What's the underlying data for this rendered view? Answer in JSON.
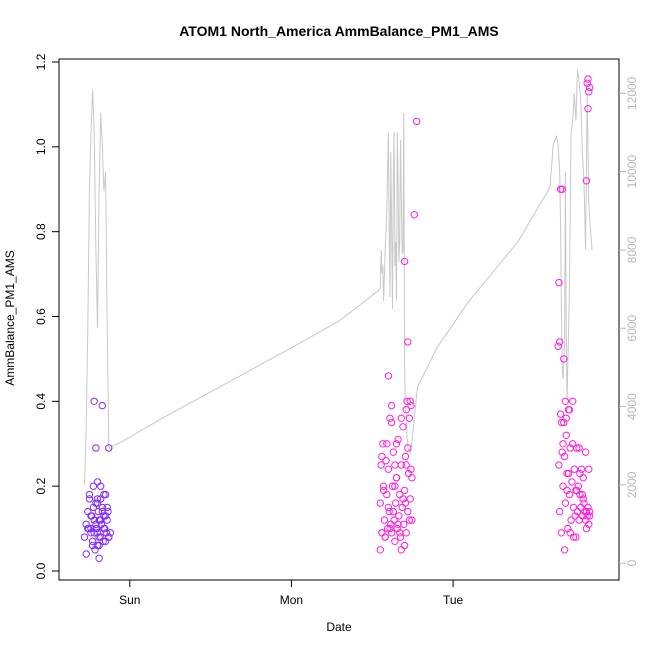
{
  "chart_data": {
    "type": "scatter",
    "title": "ATOM1 North_America AmmBalance_PM1_AMS",
    "xlabel": "Date",
    "ylabel": "AmmBalance_PM1_AMS",
    "ylabel_right": "",
    "x_ticks": [
      "Sun",
      "Mon",
      "Tue"
    ],
    "x_tick_values": [
      1,
      2,
      3
    ],
    "xlim": [
      0.63,
      3.94
    ],
    "ylim": [
      0,
      1.2
    ],
    "y_ticks": [
      0.0,
      0.2,
      0.4,
      0.6,
      0.8,
      1.0,
      1.2
    ],
    "y2lim": [
      -200,
      12800
    ],
    "y2_ticks": [
      0,
      2000,
      4000,
      6000,
      8000,
      10000,
      12000
    ],
    "grid": false,
    "colors": {
      "series_start": "#7b2cff",
      "series_end": "#ff20e0",
      "altitude_line": "#c8c8c8",
      "axis": "#000000",
      "right_axis": "#b8b8b8"
    },
    "series": [
      {
        "role": "points",
        "x": [
          0.72,
          0.73,
          0.74,
          0.745,
          0.75,
          0.76,
          0.765,
          0.77,
          0.775,
          0.78,
          0.785,
          0.79,
          0.795,
          0.8,
          0.8,
          0.805,
          0.81,
          0.815,
          0.82,
          0.82,
          0.825,
          0.83,
          0.835,
          0.84,
          0.845,
          0.85,
          0.855,
          0.86,
          0.865,
          0.87,
          0.73,
          0.74,
          0.75,
          0.76,
          0.77,
          0.78,
          0.79,
          0.8,
          0.81,
          0.82,
          0.83,
          0.84,
          0.85,
          0.86,
          0.78,
          0.79,
          0.8,
          0.81,
          0.83,
          0.87,
          0.775,
          0.8,
          0.87,
          0.81,
          0.76,
          0.82,
          0.84,
          0.85,
          0.79,
          0.88,
          2.55,
          2.555,
          2.56,
          2.565,
          2.57,
          2.575,
          2.58,
          2.585,
          2.59,
          2.595,
          2.6,
          2.605,
          2.61,
          2.615,
          2.62,
          2.625,
          2.63,
          2.635,
          2.64,
          2.645,
          2.65,
          2.655,
          2.66,
          2.665,
          2.67,
          2.675,
          2.68,
          2.685,
          2.69,
          2.695,
          2.7,
          2.705,
          2.71,
          2.715,
          2.72,
          2.725,
          2.73,
          2.735,
          2.74,
          2.745,
          2.55,
          2.57,
          2.59,
          2.61,
          2.63,
          2.65,
          2.67,
          2.69,
          2.71,
          2.73,
          2.56,
          2.58,
          2.6,
          2.62,
          2.64,
          2.66,
          2.68,
          2.7,
          2.72,
          2.74,
          2.6,
          2.62,
          2.65,
          2.68,
          2.7,
          2.72,
          2.735,
          2.705,
          2.71,
          2.745,
          2.775,
          2.76,
          2.56,
          2.64,
          3.65,
          3.655,
          3.66,
          3.665,
          3.67,
          3.675,
          3.68,
          3.685,
          3.69,
          3.695,
          3.7,
          3.705,
          3.71,
          3.715,
          3.72,
          3.725,
          3.73,
          3.735,
          3.74,
          3.745,
          3.75,
          3.755,
          3.76,
          3.765,
          3.77,
          3.775,
          3.78,
          3.785,
          3.79,
          3.795,
          3.8,
          3.805,
          3.81,
          3.815,
          3.82,
          3.825,
          3.83,
          3.835,
          3.84,
          3.845,
          3.655,
          3.665,
          3.675,
          3.685,
          3.695,
          3.705,
          3.715,
          3.725,
          3.745,
          3.765,
          3.785,
          3.805,
          3.825,
          3.845,
          3.66,
          3.67,
          3.68,
          3.69,
          3.7,
          3.72,
          3.74,
          3.76,
          3.78,
          3.8,
          3.82,
          3.84,
          3.835,
          3.83,
          3.845,
          3.84,
          3.825,
          3.835
        ],
        "y": [
          0.08,
          0.11,
          0.14,
          0.1,
          0.18,
          0.09,
          0.13,
          0.07,
          0.15,
          0.12,
          0.05,
          0.16,
          0.1,
          0.09,
          0.17,
          0.14,
          0.06,
          0.12,
          0.08,
          0.2,
          0.11,
          0.15,
          0.07,
          0.13,
          0.1,
          0.18,
          0.09,
          0.12,
          0.14,
          0.08,
          0.04,
          0.1,
          0.17,
          0.13,
          0.06,
          0.09,
          0.11,
          0.16,
          0.08,
          0.12,
          0.14,
          0.1,
          0.07,
          0.15,
          0.4,
          0.29,
          0.21,
          0.12,
          0.39,
          0.08,
          0.2,
          0.06,
          0.29,
          0.03,
          0.1,
          0.17,
          0.18,
          0.13,
          0.1,
          0.09,
          0.16,
          0.25,
          0.09,
          0.3,
          0.2,
          0.12,
          0.08,
          0.26,
          0.18,
          0.1,
          0.24,
          0.14,
          0.36,
          0.11,
          0.09,
          0.2,
          0.28,
          0.12,
          0.07,
          0.16,
          0.22,
          0.1,
          0.31,
          0.13,
          0.18,
          0.08,
          0.25,
          0.15,
          0.34,
          0.11,
          0.19,
          0.27,
          0.09,
          0.4,
          0.14,
          0.23,
          0.36,
          0.17,
          0.39,
          0.12,
          0.05,
          0.19,
          0.3,
          0.1,
          0.14,
          0.22,
          0.09,
          0.17,
          0.25,
          0.12,
          0.27,
          0.08,
          0.15,
          0.35,
          0.2,
          0.11,
          0.05,
          0.06,
          0.29,
          0.24,
          0.46,
          0.39,
          0.3,
          0.36,
          0.73,
          0.54,
          0.4,
          0.16,
          0.38,
          0.22,
          1.06,
          0.84,
          0.09,
          0.25,
          0.53,
          0.25,
          0.14,
          0.37,
          0.09,
          0.28,
          0.2,
          0.35,
          0.05,
          0.16,
          0.32,
          0.23,
          0.1,
          0.38,
          0.18,
          0.29,
          0.12,
          0.21,
          0.3,
          0.15,
          0.24,
          0.13,
          0.19,
          0.29,
          0.14,
          0.2,
          0.12,
          0.18,
          0.15,
          0.24,
          0.13,
          0.17,
          0.16,
          0.14,
          0.12,
          0.1,
          0.13,
          0.15,
          0.11,
          0.14,
          0.68,
          0.9,
          0.9,
          0.5,
          0.4,
          0.19,
          0.23,
          0.09,
          0.08,
          0.19,
          0.23,
          0.22,
          0.14,
          0.13,
          0.54,
          0.35,
          0.3,
          0.27,
          0.36,
          0.38,
          0.4,
          0.08,
          0.29,
          0.18,
          0.28,
          0.24,
          1.16,
          1.15,
          1.14,
          1.13,
          0.92,
          1.09
        ]
      },
      {
        "role": "line",
        "axis": "right",
        "x": [
          0.72,
          0.73,
          0.74,
          0.75,
          0.76,
          0.77,
          0.78,
          0.79,
          0.8,
          0.81,
          0.82,
          0.83,
          0.84,
          0.85,
          0.86,
          0.87,
          0.88,
          0.89,
          0.9,
          0.95,
          1.2,
          1.6,
          2.0,
          2.3,
          2.55,
          2.553,
          2.556,
          2.56,
          2.565,
          2.57,
          2.58,
          2.59,
          2.6,
          2.605,
          2.61,
          2.615,
          2.62,
          2.625,
          2.63,
          2.635,
          2.64,
          2.645,
          2.65,
          2.655,
          2.66,
          2.665,
          2.67,
          2.675,
          2.68,
          2.685,
          2.69,
          2.695,
          2.7,
          2.705,
          2.71,
          2.715,
          2.72,
          2.725,
          2.73,
          2.735,
          2.74,
          2.745,
          2.75,
          2.76,
          2.78,
          2.9,
          3.1,
          3.4,
          3.6,
          3.62,
          3.64,
          3.65,
          3.66,
          3.665,
          3.67,
          3.675,
          3.68,
          3.69,
          3.695,
          3.7,
          3.705,
          3.71,
          3.72,
          3.73,
          3.74,
          3.75,
          3.76,
          3.77,
          3.78,
          3.79,
          3.8,
          3.81,
          3.82,
          3.83,
          3.84,
          3.85,
          3.86
        ],
        "y": [
          2000,
          3500,
          6000,
          9500,
          11000,
          12100,
          11000,
          8000,
          6000,
          9500,
          11500,
          10700,
          9500,
          10000,
          6000,
          3000,
          2900,
          3000,
          3000,
          3100,
          3700,
          4600,
          5500,
          6200,
          7000,
          7600,
          8000,
          7400,
          7600,
          6700,
          8000,
          9000,
          11000,
          8500,
          6800,
          10500,
          8700,
          6500,
          9800,
          11000,
          7600,
          8200,
          6700,
          11000,
          9800,
          7700,
          8200,
          10800,
          9400,
          7900,
          8000,
          11500,
          5000,
          3900,
          3800,
          3200,
          3000,
          2900,
          2900,
          2800,
          2900,
          3100,
          3300,
          3700,
          4500,
          5500,
          6700,
          8200,
          9600,
          10700,
          10900,
          10700,
          10000,
          8500,
          6500,
          5000,
          4700,
          5600,
          10000,
          6000,
          4100,
          5000,
          7000,
          11000,
          11300,
          12000,
          11300,
          12600,
          12300,
          11800,
          10500,
          9700,
          8000,
          12000,
          9200,
          8500,
          8000
        ]
      }
    ]
  }
}
